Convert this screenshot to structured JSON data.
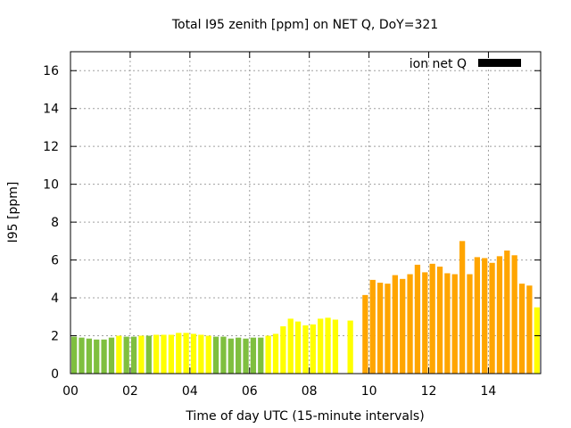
{
  "chart_data": {
    "type": "bar",
    "title": "Total I95 zenith [ppm] on NET Q, DoY=321",
    "xlabel": "Time of day UTC (15-minute intervals)",
    "ylabel": "I95 [ppm]",
    "xlim": [
      0,
      15.75
    ],
    "ylim": [
      0,
      17
    ],
    "xticks": [
      "00",
      "02",
      "04",
      "06",
      "08",
      "10",
      "12",
      "14"
    ],
    "xtick_values": [
      0,
      2,
      4,
      6,
      8,
      10,
      12,
      14
    ],
    "yticks": [
      0,
      2,
      4,
      6,
      8,
      10,
      12,
      14,
      16
    ],
    "grid": true,
    "legend": {
      "label": "ion net Q",
      "color": "#000000",
      "position": "top-right"
    },
    "bar_interval_hours": 0.25,
    "colors": {
      "green": "#7fbf3f",
      "yellow": "#ffff00",
      "orange": "#ffa500"
    },
    "bars": [
      {
        "t": 0.0,
        "v": 1.95,
        "c": "green"
      },
      {
        "t": 0.25,
        "v": 1.9,
        "c": "green"
      },
      {
        "t": 0.5,
        "v": 1.85,
        "c": "green"
      },
      {
        "t": 0.75,
        "v": 1.8,
        "c": "green"
      },
      {
        "t": 1.0,
        "v": 1.8,
        "c": "green"
      },
      {
        "t": 1.25,
        "v": 1.9,
        "c": "green"
      },
      {
        "t": 1.5,
        "v": 2.0,
        "c": "yellow"
      },
      {
        "t": 1.75,
        "v": 1.95,
        "c": "green"
      },
      {
        "t": 2.0,
        "v": 1.95,
        "c": "green"
      },
      {
        "t": 2.25,
        "v": 2.0,
        "c": "yellow"
      },
      {
        "t": 2.5,
        "v": 2.0,
        "c": "green"
      },
      {
        "t": 2.75,
        "v": 2.05,
        "c": "yellow"
      },
      {
        "t": 3.0,
        "v": 2.05,
        "c": "yellow"
      },
      {
        "t": 3.25,
        "v": 2.05,
        "c": "yellow"
      },
      {
        "t": 3.5,
        "v": 2.15,
        "c": "yellow"
      },
      {
        "t": 3.75,
        "v": 2.15,
        "c": "yellow"
      },
      {
        "t": 4.0,
        "v": 2.1,
        "c": "yellow"
      },
      {
        "t": 4.25,
        "v": 2.05,
        "c": "yellow"
      },
      {
        "t": 4.5,
        "v": 2.0,
        "c": "yellow"
      },
      {
        "t": 4.75,
        "v": 1.95,
        "c": "green"
      },
      {
        "t": 5.0,
        "v": 1.95,
        "c": "green"
      },
      {
        "t": 5.25,
        "v": 1.85,
        "c": "green"
      },
      {
        "t": 5.5,
        "v": 1.9,
        "c": "green"
      },
      {
        "t": 5.75,
        "v": 1.85,
        "c": "green"
      },
      {
        "t": 6.0,
        "v": 1.9,
        "c": "green"
      },
      {
        "t": 6.25,
        "v": 1.9,
        "c": "green"
      },
      {
        "t": 6.5,
        "v": 2.0,
        "c": "yellow"
      },
      {
        "t": 6.75,
        "v": 2.1,
        "c": "yellow"
      },
      {
        "t": 7.0,
        "v": 2.5,
        "c": "yellow"
      },
      {
        "t": 7.25,
        "v": 2.9,
        "c": "yellow"
      },
      {
        "t": 7.5,
        "v": 2.75,
        "c": "yellow"
      },
      {
        "t": 7.75,
        "v": 2.55,
        "c": "yellow"
      },
      {
        "t": 8.0,
        "v": 2.6,
        "c": "yellow"
      },
      {
        "t": 8.25,
        "v": 2.9,
        "c": "yellow"
      },
      {
        "t": 8.5,
        "v": 2.95,
        "c": "yellow"
      },
      {
        "t": 8.75,
        "v": 2.85,
        "c": "yellow"
      },
      {
        "t": 9.25,
        "v": 2.8,
        "c": "yellow"
      },
      {
        "t": 9.75,
        "v": 4.15,
        "c": "orange"
      },
      {
        "t": 10.0,
        "v": 4.95,
        "c": "orange"
      },
      {
        "t": 10.25,
        "v": 4.8,
        "c": "orange"
      },
      {
        "t": 10.5,
        "v": 4.75,
        "c": "orange"
      },
      {
        "t": 10.75,
        "v": 5.2,
        "c": "orange"
      },
      {
        "t": 11.0,
        "v": 5.0,
        "c": "orange"
      },
      {
        "t": 11.25,
        "v": 5.25,
        "c": "orange"
      },
      {
        "t": 11.5,
        "v": 5.75,
        "c": "orange"
      },
      {
        "t": 11.75,
        "v": 5.35,
        "c": "orange"
      },
      {
        "t": 12.0,
        "v": 5.8,
        "c": "orange"
      },
      {
        "t": 12.25,
        "v": 5.65,
        "c": "orange"
      },
      {
        "t": 12.5,
        "v": 5.3,
        "c": "orange"
      },
      {
        "t": 12.75,
        "v": 5.25,
        "c": "orange"
      },
      {
        "t": 13.0,
        "v": 7.0,
        "c": "orange"
      },
      {
        "t": 13.25,
        "v": 5.25,
        "c": "orange"
      },
      {
        "t": 13.5,
        "v": 6.15,
        "c": "orange"
      },
      {
        "t": 13.75,
        "v": 6.1,
        "c": "orange"
      },
      {
        "t": 14.0,
        "v": 5.85,
        "c": "orange"
      },
      {
        "t": 14.25,
        "v": 6.2,
        "c": "orange"
      },
      {
        "t": 14.5,
        "v": 6.5,
        "c": "orange"
      },
      {
        "t": 14.75,
        "v": 6.25,
        "c": "orange"
      },
      {
        "t": 15.0,
        "v": 4.75,
        "c": "orange"
      },
      {
        "t": 15.25,
        "v": 4.65,
        "c": "orange"
      },
      {
        "t": 15.5,
        "v": 3.5,
        "c": "yellow"
      }
    ]
  }
}
